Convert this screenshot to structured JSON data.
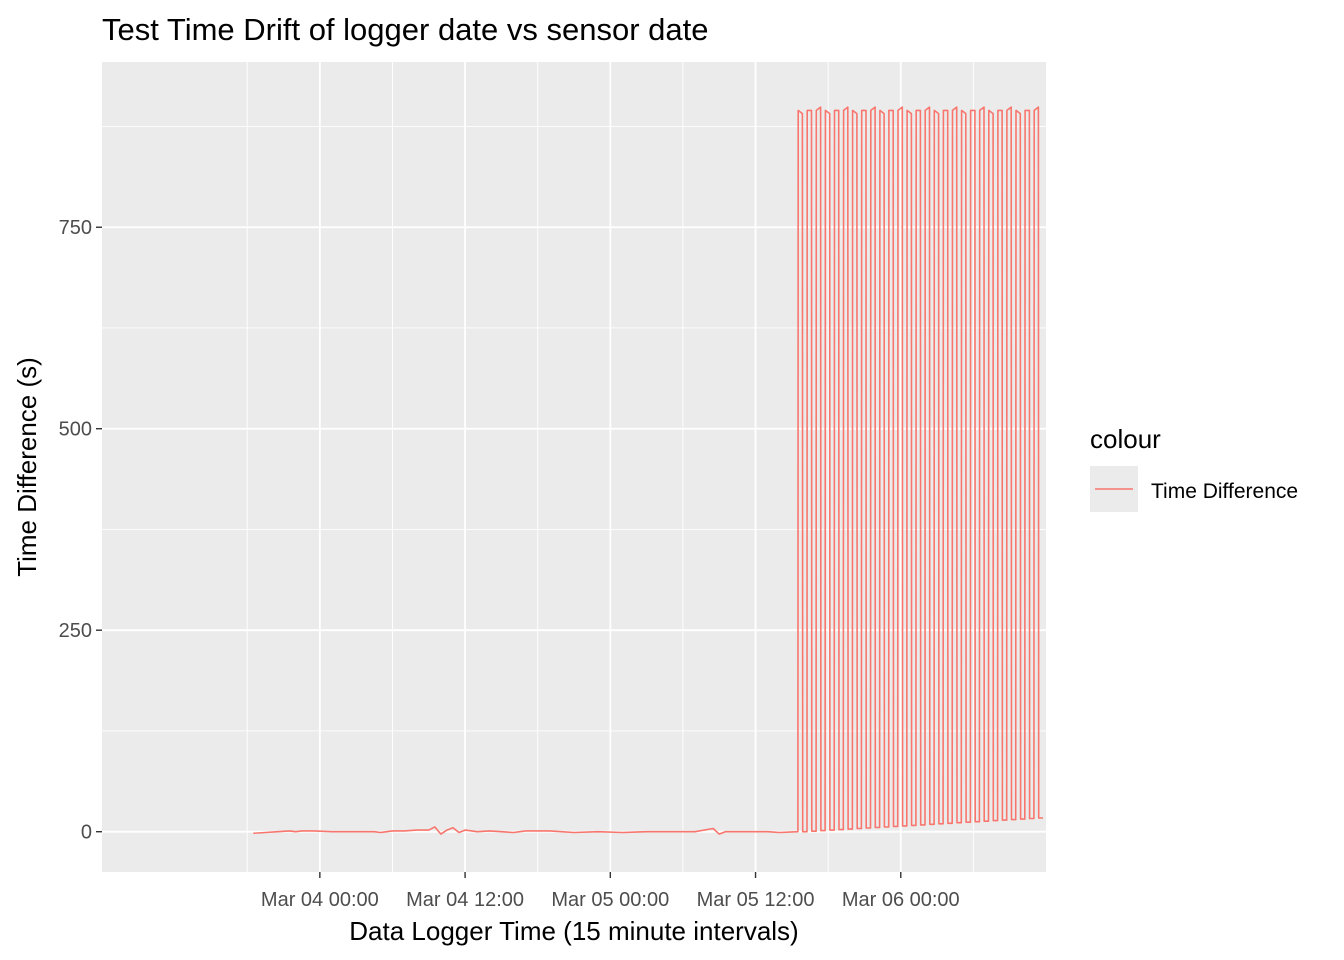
{
  "chart_data": {
    "type": "line",
    "title": "Test Time Drift of logger date vs sensor date",
    "xlabel": "Data Logger Time (15 minute intervals)",
    "ylabel": "Time Difference (s)",
    "x_tick_labels": [
      "Mar 04 00:00",
      "Mar 04 12:00",
      "Mar 05 00:00",
      "Mar 05 12:00",
      "Mar 06 00:00"
    ],
    "y_tick_labels": [
      "0",
      "250",
      "500",
      "750"
    ],
    "y_ticks": [
      0,
      250,
      500,
      750
    ],
    "xlim": [
      "2021-03-03 06:00",
      "2021-03-06 12:00"
    ],
    "ylim": [
      -50,
      955
    ],
    "grid": true,
    "legend": {
      "title": "colour",
      "placement": "right",
      "entries": [
        "Time Difference"
      ]
    },
    "colors": {
      "series": "#f8766d",
      "panel_background": "#ebebeb",
      "grid": "#ffffff"
    },
    "series": [
      {
        "name": "Time Difference",
        "points": [
          [
            "2021-03-03 18:30",
            -2
          ],
          [
            "2021-03-03 19:30",
            -1
          ],
          [
            "2021-03-03 20:30",
            0
          ],
          [
            "2021-03-03 21:30",
            1
          ],
          [
            "2021-03-03 22:00",
            0
          ],
          [
            "2021-03-03 22:30",
            1
          ],
          [
            "2021-03-03 23:30",
            1
          ],
          [
            "2021-03-04 01:00",
            0
          ],
          [
            "2021-03-04 03:00",
            0
          ],
          [
            "2021-03-04 04:30",
            0
          ],
          [
            "2021-03-04 05:00",
            -1
          ],
          [
            "2021-03-04 06:00",
            1
          ],
          [
            "2021-03-04 07:00",
            1
          ],
          [
            "2021-03-04 08:00",
            2
          ],
          [
            "2021-03-04 09:00",
            2
          ],
          [
            "2021-03-04 09:30",
            6
          ],
          [
            "2021-03-04 10:00",
            -3
          ],
          [
            "2021-03-04 10:30",
            2
          ],
          [
            "2021-03-04 11:00",
            5
          ],
          [
            "2021-03-04 11:30",
            -1
          ],
          [
            "2021-03-04 12:00",
            2
          ],
          [
            "2021-03-04 13:00",
            0
          ],
          [
            "2021-03-04 14:00",
            1
          ],
          [
            "2021-03-04 15:00",
            0
          ],
          [
            "2021-03-04 16:00",
            -1
          ],
          [
            "2021-03-04 17:00",
            1
          ],
          [
            "2021-03-04 19:00",
            1
          ],
          [
            "2021-03-04 21:00",
            -1
          ],
          [
            "2021-03-04 23:00",
            0
          ],
          [
            "2021-03-05 01:00",
            -1
          ],
          [
            "2021-03-05 03:00",
            0
          ],
          [
            "2021-03-05 05:00",
            0
          ],
          [
            "2021-03-05 07:00",
            0
          ],
          [
            "2021-03-05 08:30",
            4
          ],
          [
            "2021-03-05 09:00",
            -3
          ],
          [
            "2021-03-05 09:30",
            0
          ],
          [
            "2021-03-05 11:00",
            0
          ],
          [
            "2021-03-05 13:00",
            0
          ],
          [
            "2021-03-05 14:00",
            -1
          ],
          [
            "2021-03-05 15:30",
            0
          ]
        ],
        "oscillation": {
          "period_hours": 0.75,
          "from": "2021-03-05 15:30",
          "to": "2021-03-06 11:30",
          "low_start": 0,
          "low_end": 17,
          "high_start": 895,
          "high_end": 895
        }
      }
    ]
  }
}
